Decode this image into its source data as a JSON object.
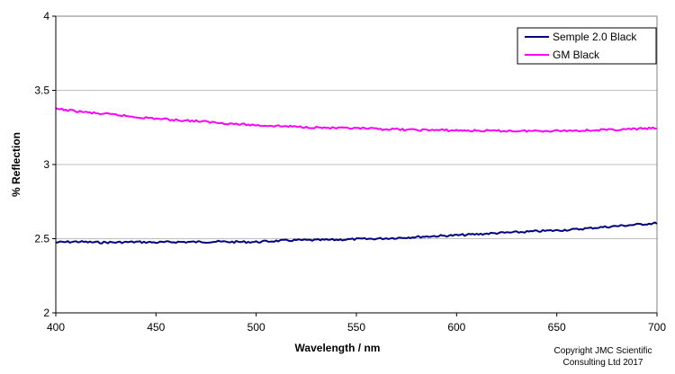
{
  "chart_data": {
    "type": "line",
    "xlabel": "Wavelength / nm",
    "ylabel": "% Reflection",
    "xlim": [
      400,
      700
    ],
    "ylim": [
      2,
      4
    ],
    "xticks": [
      400,
      450,
      500,
      550,
      600,
      650,
      700
    ],
    "yticks": [
      2,
      2.5,
      3,
      3.5,
      4
    ],
    "ytick_labels": [
      "2",
      "2.5",
      "3",
      "3.5",
      "4"
    ],
    "grid": "horizontal",
    "legend_position": "top-right",
    "series": [
      {
        "name": "Semple 2.0 Black",
        "color": "#000080",
        "x": [
          400,
          410,
          420,
          430,
          440,
          450,
          460,
          470,
          480,
          490,
          500,
          510,
          520,
          530,
          540,
          550,
          560,
          570,
          580,
          590,
          600,
          610,
          620,
          630,
          640,
          650,
          660,
          670,
          680,
          690,
          700
        ],
        "values": [
          2.475,
          2.48,
          2.475,
          2.475,
          2.478,
          2.475,
          2.478,
          2.478,
          2.48,
          2.478,
          2.478,
          2.485,
          2.49,
          2.49,
          2.493,
          2.497,
          2.5,
          2.505,
          2.512,
          2.518,
          2.523,
          2.53,
          2.538,
          2.543,
          2.55,
          2.556,
          2.563,
          2.575,
          2.585,
          2.595,
          2.605
        ]
      },
      {
        "name": "GM Black",
        "color": "#FF00FF",
        "x": [
          400,
          410,
          420,
          430,
          440,
          450,
          460,
          470,
          480,
          490,
          500,
          510,
          520,
          530,
          540,
          550,
          560,
          570,
          580,
          590,
          600,
          610,
          620,
          630,
          640,
          650,
          660,
          670,
          680,
          690,
          700
        ],
        "values": [
          3.375,
          3.36,
          3.345,
          3.335,
          3.32,
          3.31,
          3.3,
          3.293,
          3.283,
          3.273,
          3.265,
          3.26,
          3.255,
          3.25,
          3.245,
          3.243,
          3.24,
          3.237,
          3.233,
          3.232,
          3.23,
          3.228,
          3.227,
          3.226,
          3.227,
          3.228,
          3.229,
          3.232,
          3.235,
          3.24,
          3.245
        ]
      }
    ]
  },
  "copyright": {
    "line1": "Copyright JMC Scientific",
    "line2": "Consulting Ltd 2017"
  }
}
